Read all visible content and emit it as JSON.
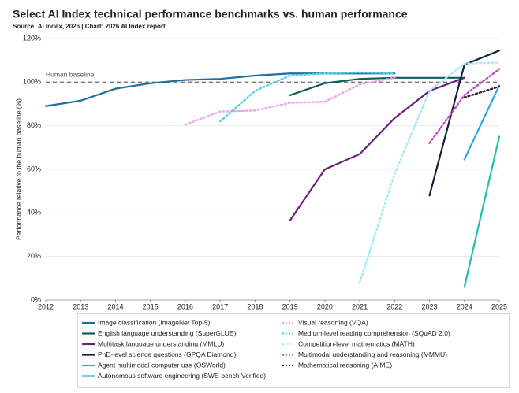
{
  "chart_data": {
    "type": "line",
    "title": "Select AI Index technical performance benchmarks vs. human performance",
    "subtitle": "Source: AI Index, 2026 | Chart: 2026 AI Index report",
    "y_label": "Performance relative to the human baseline (%)",
    "baseline": {
      "value": 100,
      "label": "Human baseline"
    },
    "x": [
      2012,
      2013,
      2014,
      2015,
      2016,
      2017,
      2018,
      2019,
      2020,
      2021,
      2022,
      2023,
      2024,
      2025
    ],
    "xlim": [
      2012,
      2025
    ],
    "xticks": [
      2012,
      2013,
      2014,
      2015,
      2016,
      2017,
      2018,
      2019,
      2020,
      2021,
      2022,
      2023,
      2024,
      2025
    ],
    "ylim": [
      0,
      120
    ],
    "yticks": [
      {
        "value": 0,
        "label": "0%"
      },
      {
        "value": 20,
        "label": "20%"
      },
      {
        "value": 40,
        "label": "40%"
      },
      {
        "value": 60,
        "label": "60%"
      },
      {
        "value": 80,
        "label": "80%"
      },
      {
        "value": 100,
        "label": "100%"
      },
      {
        "value": 120,
        "label": "120%"
      }
    ],
    "series": [
      {
        "name": "Image classification (ImageNet Top-5)",
        "color": "#1f6e9c",
        "dashed": false,
        "values": [
          89,
          91.5,
          97,
          99.5,
          101,
          101.5,
          103,
          104,
          104,
          104,
          104,
          null,
          null,
          null
        ]
      },
      {
        "name": "English language understanding (SuperGLUE)",
        "color": "#0e5e5a",
        "dashed": false,
        "values": [
          null,
          null,
          null,
          null,
          null,
          null,
          null,
          94,
          99.5,
          101.5,
          102,
          102,
          102,
          null
        ]
      },
      {
        "name": "Multitask language understanding (MMLU)",
        "color": "#6e1f7c",
        "dashed": false,
        "values": [
          null,
          null,
          null,
          null,
          null,
          null,
          null,
          36.5,
          60,
          67,
          83.5,
          96,
          102,
          null
        ]
      },
      {
        "name": "PhD-level science questions (GPQA Diamond)",
        "color": "#14213d",
        "dashed": false,
        "values": [
          null,
          null,
          null,
          null,
          null,
          null,
          null,
          null,
          null,
          null,
          null,
          48,
          108,
          114.5
        ]
      },
      {
        "name": "Agent multimodal computer use (OSWorld)",
        "color": "#19c3b3",
        "dashed": false,
        "values": [
          null,
          null,
          null,
          null,
          null,
          null,
          null,
          null,
          null,
          null,
          null,
          null,
          6,
          75
        ]
      },
      {
        "name": "Autonomous software engineering (SWE-bench Verified)",
        "color": "#2aa6e0",
        "dashed": false,
        "values": [
          null,
          null,
          null,
          null,
          null,
          null,
          null,
          null,
          null,
          null,
          null,
          null,
          64.5,
          98.5
        ]
      },
      {
        "name": "Visual reasoning (VQA)",
        "color": "#f0a6e6",
        "dashed": true,
        "values": [
          null,
          null,
          null,
          null,
          80.5,
          86.5,
          87,
          90.5,
          91,
          99,
          102,
          null,
          null,
          null
        ]
      },
      {
        "name": "Medium-level reading comprehension (SQuAD 2.0)",
        "color": "#5bd0e3",
        "dashed": true,
        "values": [
          null,
          null,
          null,
          null,
          null,
          82,
          96,
          103,
          104,
          104.5,
          104,
          null,
          null,
          null
        ]
      },
      {
        "name": "Competition-level mathematics (MATH)",
        "color": "#a6ecec",
        "dashed": true,
        "values": [
          null,
          null,
          null,
          null,
          null,
          null,
          null,
          null,
          null,
          8,
          58,
          96,
          108.5,
          109
        ]
      },
      {
        "name": "Multimodal understanding and reasoning (MMMU)",
        "color": "#c04bc4",
        "dashed": true,
        "values": [
          null,
          null,
          null,
          null,
          null,
          null,
          null,
          null,
          null,
          null,
          null,
          72,
          94,
          106
        ]
      },
      {
        "name": "Mathematical reasoning (AIME)",
        "color": "#3a1838",
        "dashed": true,
        "values": [
          null,
          null,
          null,
          null,
          null,
          null,
          null,
          null,
          null,
          null,
          null,
          null,
          93,
          98
        ]
      }
    ]
  }
}
